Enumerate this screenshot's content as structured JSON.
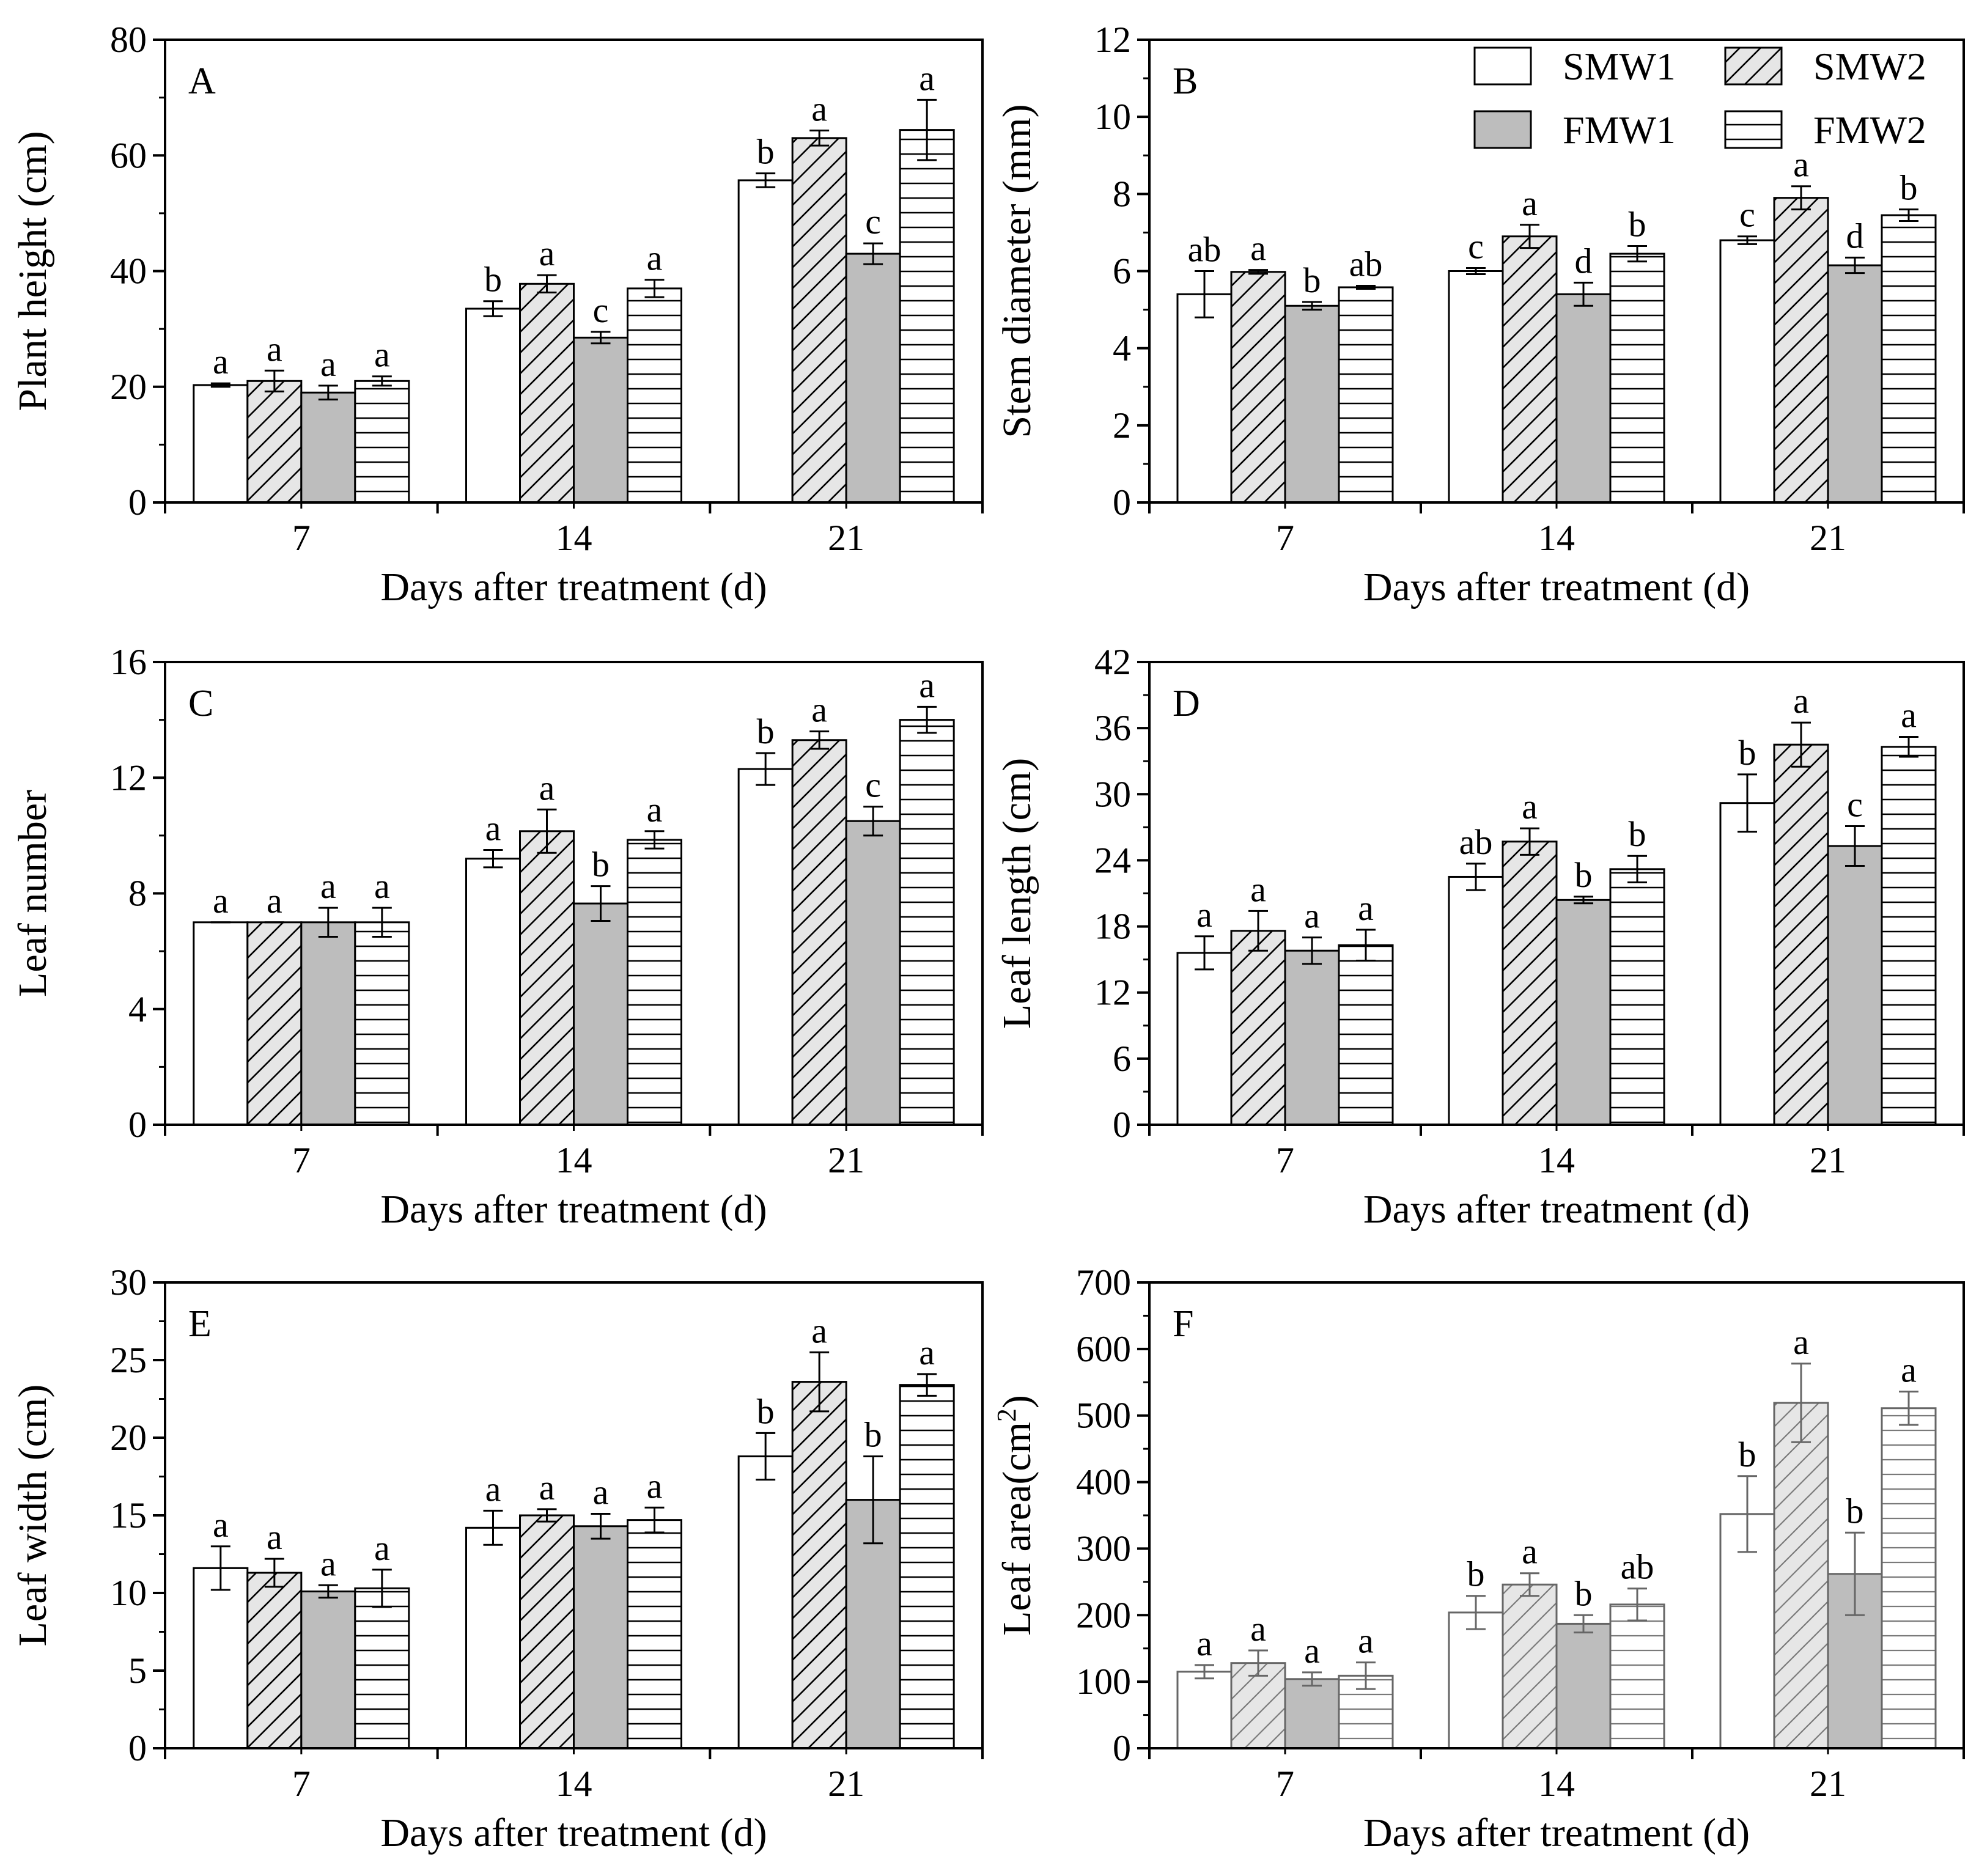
{
  "figure": {
    "series_names": [
      "SMW1",
      "SMW2",
      "FMW1",
      "FMW2"
    ],
    "series_styles": [
      {
        "fill": "#ffffff",
        "pattern": "none"
      },
      {
        "fill": "#e6e6e6",
        "pattern": "diagonal"
      },
      {
        "fill": "#bdbdbd",
        "pattern": "none"
      },
      {
        "fill": "#ffffff",
        "pattern": "horizontal"
      }
    ],
    "colors": {
      "axis": "#000000",
      "bar_stroke": "#000000",
      "light_stroke": "#666666"
    }
  },
  "chart_data": [
    {
      "type": "bar",
      "panel": "A",
      "title": "",
      "xlabel": "Days after treatment (d)",
      "ylabel": "Plant height (cm)",
      "categories": [
        "7",
        "14",
        "21"
      ],
      "ylim": [
        0,
        80
      ],
      "yticks": [
        "0",
        "20",
        "40",
        "60",
        "80"
      ],
      "series": [
        {
          "name": "SMW1",
          "values": [
            20.3,
            33.5,
            55.7
          ],
          "errors": [
            0.3,
            1.3,
            1.2
          ],
          "letters": [
            "a",
            "b",
            "b"
          ]
        },
        {
          "name": "SMW2",
          "values": [
            21.0,
            37.8,
            63.0
          ],
          "errors": [
            1.8,
            1.5,
            1.3
          ],
          "letters": [
            "a",
            "a",
            "a"
          ]
        },
        {
          "name": "FMW1",
          "values": [
            19.0,
            28.5,
            43.0
          ],
          "errors": [
            1.2,
            1.0,
            1.8
          ],
          "letters": [
            "a",
            "c",
            "c"
          ]
        },
        {
          "name": "FMW2",
          "values": [
            21.0,
            37.0,
            64.4
          ],
          "errors": [
            0.8,
            1.5,
            5.2
          ],
          "letters": [
            "a",
            "a",
            "a"
          ]
        }
      ]
    },
    {
      "type": "bar",
      "panel": "B",
      "title": "",
      "xlabel": "Days after treatment (d)",
      "ylabel": "Stem diameter (mm)",
      "categories": [
        "7",
        "14",
        "21"
      ],
      "ylim": [
        0,
        12
      ],
      "yticks": [
        "0",
        "2",
        "4",
        "6",
        "8",
        "10",
        "12"
      ],
      "series": [
        {
          "name": "SMW1",
          "values": [
            5.4,
            6.0,
            6.8
          ],
          "errors": [
            0.6,
            0.08,
            0.1
          ],
          "letters": [
            "ab",
            "c",
            "c"
          ]
        },
        {
          "name": "SMW2",
          "values": [
            5.98,
            6.9,
            7.9
          ],
          "errors": [
            0.05,
            0.3,
            0.3
          ],
          "letters": [
            "a",
            "a",
            "a"
          ]
        },
        {
          "name": "FMW1",
          "values": [
            5.1,
            5.4,
            6.15
          ],
          "errors": [
            0.1,
            0.3,
            0.2
          ],
          "letters": [
            "b",
            "d",
            "d"
          ]
        },
        {
          "name": "FMW2",
          "values": [
            5.58,
            6.45,
            7.45
          ],
          "errors": [
            0.04,
            0.2,
            0.15
          ],
          "letters": [
            "ab",
            "b",
            "b"
          ]
        }
      ],
      "legend": "top-right"
    },
    {
      "type": "bar",
      "panel": "C",
      "title": "",
      "xlabel": "Days after treatment (d)",
      "ylabel": "Leaf number",
      "categories": [
        "7",
        "14",
        "21"
      ],
      "ylim": [
        0,
        16
      ],
      "yticks": [
        "0",
        "4",
        "8",
        "12",
        "16"
      ],
      "series": [
        {
          "name": "SMW1",
          "values": [
            7.0,
            9.2,
            12.3
          ],
          "errors": [
            0.0,
            0.3,
            0.55
          ],
          "letters": [
            "a",
            "a",
            "b"
          ]
        },
        {
          "name": "SMW2",
          "values": [
            7.0,
            10.15,
            13.3
          ],
          "errors": [
            0.0,
            0.75,
            0.3
          ],
          "letters": [
            "a",
            "a",
            "a"
          ]
        },
        {
          "name": "FMW1",
          "values": [
            7.0,
            7.65,
            10.5
          ],
          "errors": [
            0.5,
            0.6,
            0.5
          ],
          "letters": [
            "a",
            "b",
            "c"
          ]
        },
        {
          "name": "FMW2",
          "values": [
            7.0,
            9.85,
            14.0
          ],
          "errors": [
            0.5,
            0.3,
            0.45
          ],
          "letters": [
            "a",
            "a",
            "a"
          ]
        }
      ]
    },
    {
      "type": "bar",
      "panel": "D",
      "title": "",
      "xlabel": "Days after treatment (d)",
      "ylabel": "Leaf length (cm)",
      "categories": [
        "7",
        "14",
        "21"
      ],
      "ylim": [
        0,
        42
      ],
      "yticks": [
        "0",
        "6",
        "12",
        "18",
        "24",
        "30",
        "36",
        "42"
      ],
      "series": [
        {
          "name": "SMW1",
          "values": [
            15.6,
            22.5,
            29.2
          ],
          "errors": [
            1.5,
            1.2,
            2.6
          ],
          "letters": [
            "a",
            "ab",
            "b"
          ]
        },
        {
          "name": "SMW2",
          "values": [
            17.6,
            25.7,
            34.5
          ],
          "errors": [
            1.8,
            1.2,
            2.0
          ],
          "letters": [
            "a",
            "a",
            "a"
          ]
        },
        {
          "name": "FMW1",
          "values": [
            15.8,
            20.4,
            25.3
          ],
          "errors": [
            1.2,
            0.3,
            1.8
          ],
          "letters": [
            "a",
            "b",
            "c"
          ]
        },
        {
          "name": "FMW2",
          "values": [
            16.3,
            23.2,
            34.3
          ],
          "errors": [
            1.4,
            1.2,
            0.9
          ],
          "letters": [
            "a",
            "b",
            "a"
          ]
        }
      ]
    },
    {
      "type": "bar",
      "panel": "E",
      "title": "",
      "xlabel": "Days after treatment (d)",
      "ylabel": "Leaf width (cm)",
      "categories": [
        "7",
        "14",
        "21"
      ],
      "ylim": [
        0,
        30
      ],
      "yticks": [
        "0",
        "5",
        "10",
        "15",
        "20",
        "25",
        "30"
      ],
      "series": [
        {
          "name": "SMW1",
          "values": [
            11.6,
            14.2,
            18.8
          ],
          "errors": [
            1.4,
            1.1,
            1.5
          ],
          "letters": [
            "a",
            "a",
            "b"
          ]
        },
        {
          "name": "SMW2",
          "values": [
            11.3,
            15.0,
            23.6
          ],
          "errors": [
            0.9,
            0.4,
            1.9
          ],
          "letters": [
            "a",
            "a",
            "a"
          ]
        },
        {
          "name": "FMW1",
          "values": [
            10.1,
            14.3,
            16.0
          ],
          "errors": [
            0.4,
            0.8,
            2.8
          ],
          "letters": [
            "a",
            "a",
            "b"
          ]
        },
        {
          "name": "FMW2",
          "values": [
            10.3,
            14.7,
            23.4
          ],
          "errors": [
            1.2,
            0.8,
            0.7
          ],
          "letters": [
            "a",
            "a",
            "a"
          ]
        }
      ]
    },
    {
      "type": "bar",
      "panel": "F",
      "title": "",
      "xlabel": "Days after treatment (d)",
      "ylabel": "Leaf area(cm",
      "ylabel_sup": "2",
      "ylabel_end": ")",
      "categories": [
        "7",
        "14",
        "21"
      ],
      "ylim": [
        0,
        700
      ],
      "yticks": [
        "0",
        "100",
        "200",
        "300",
        "400",
        "500",
        "600",
        "700"
      ],
      "series": [
        {
          "name": "SMW1",
          "values": [
            115,
            204,
            352
          ],
          "errors": [
            10,
            25,
            57
          ],
          "letters": [
            "a",
            "b",
            "b"
          ]
        },
        {
          "name": "SMW2",
          "values": [
            128,
            246,
            519
          ],
          "errors": [
            19,
            17,
            59
          ],
          "letters": [
            "a",
            "a",
            "a"
          ]
        },
        {
          "name": "FMW1",
          "values": [
            104,
            187,
            262
          ],
          "errors": [
            10,
            13,
            62
          ],
          "letters": [
            "a",
            "b",
            "b"
          ]
        },
        {
          "name": "FMW2",
          "values": [
            109,
            216,
            511
          ],
          "errors": [
            20,
            24,
            25
          ],
          "letters": [
            "a",
            "ab",
            "a"
          ]
        }
      ],
      "light_style": true
    }
  ]
}
